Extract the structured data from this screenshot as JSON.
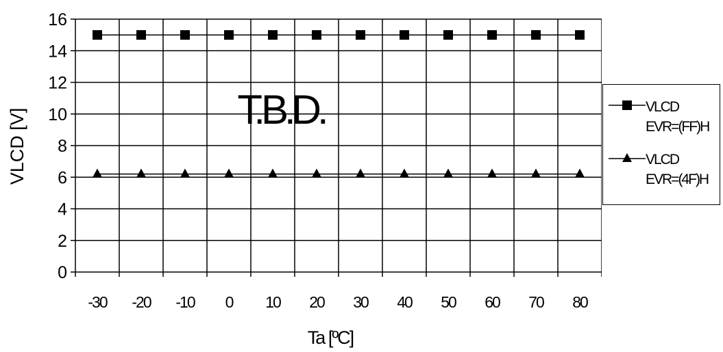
{
  "chart_data": {
    "type": "line",
    "xlabel": "Ta [ºC]",
    "ylabel": "VLCD [V]",
    "annotation": "T.B.D.",
    "x": [
      -30,
      -20,
      -10,
      0,
      10,
      20,
      30,
      40,
      50,
      60,
      70,
      80
    ],
    "ylim": [
      0,
      16
    ],
    "yticks": [
      0,
      2,
      4,
      6,
      8,
      10,
      12,
      14,
      16
    ],
    "grid": true,
    "legend_position": "right",
    "series": [
      {
        "name_line1": "VLCD",
        "name_line2": "EVR=(FF)H",
        "marker": "square",
        "values": [
          15,
          15,
          15,
          15,
          15,
          15,
          15,
          15,
          15,
          15,
          15,
          15
        ]
      },
      {
        "name_line1": "VLCD",
        "name_line2": "EVR=(4F)H",
        "marker": "triangle",
        "values": [
          6.2,
          6.2,
          6.2,
          6.2,
          6.2,
          6.2,
          6.2,
          6.2,
          6.2,
          6.2,
          6.2,
          6.2
        ]
      }
    ]
  }
}
